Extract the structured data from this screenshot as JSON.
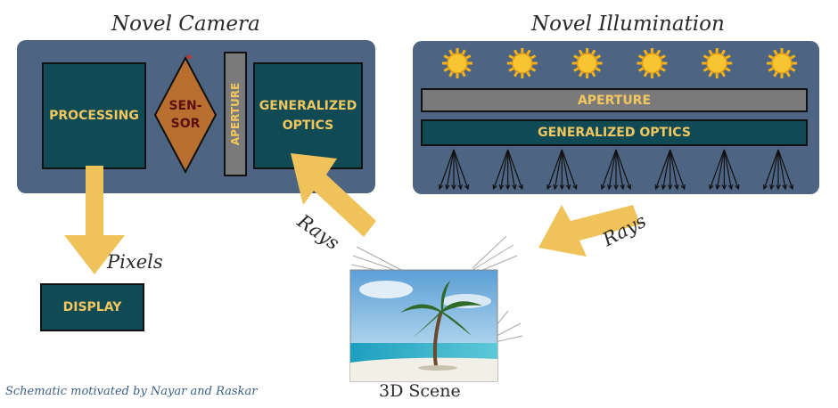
{
  "camera": {
    "title": "Novel Camera",
    "processing": "PROCESSING",
    "sensor_line1": "SEN-",
    "sensor_line2": "SOR",
    "aperture": "APERTURE",
    "optics_line1": "GENERALIZED",
    "optics_line2": "OPTICS"
  },
  "illumination": {
    "title": "Novel Illumination",
    "aperture": "APERTURE",
    "optics": "GENERALIZED OPTICS",
    "sun_count": 6,
    "ray_fans": 7
  },
  "labels": {
    "pixels": "Pixels",
    "rays_left": "Rays",
    "rays_right": "Rays",
    "scene": "3D Scene",
    "display": "DISPLAY",
    "credit": "Schematic motivated by Nayar and Raskar"
  },
  "colors": {
    "panel": "#4d6482",
    "box": "#0f4a55",
    "box_text": "#f3c75e",
    "sensor": "#b86f2f",
    "sensor_text": "#5a1010",
    "arrow": "#f0c25a",
    "aperture": "#7a7a7a"
  }
}
